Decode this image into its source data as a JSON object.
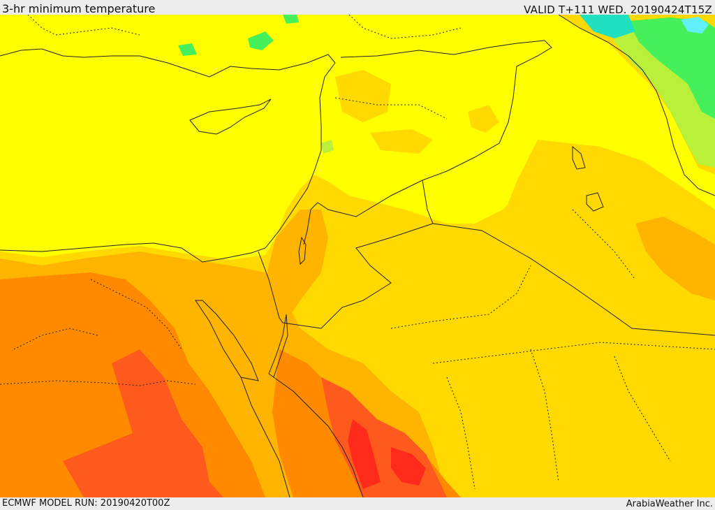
{
  "header": {
    "title": "3-hr minimum temperature",
    "valid": "VALID T+111 WED. 20190424T15Z"
  },
  "footer": {
    "model_run": "ECMWF MODEL RUN: 20190420T00Z",
    "credit": "ArabiaWeather Inc."
  },
  "palette": {
    "yellow": "#ffff00",
    "gold": "#ffd900",
    "amber": "#ffb400",
    "orange": "#ff8a00",
    "red_orange": "#ff5a1e",
    "red": "#ff2a1a",
    "green_light": "#b8f03a",
    "green": "#46f05a",
    "cyan": "#20e0c0",
    "aqua": "#60f0ff"
  }
}
